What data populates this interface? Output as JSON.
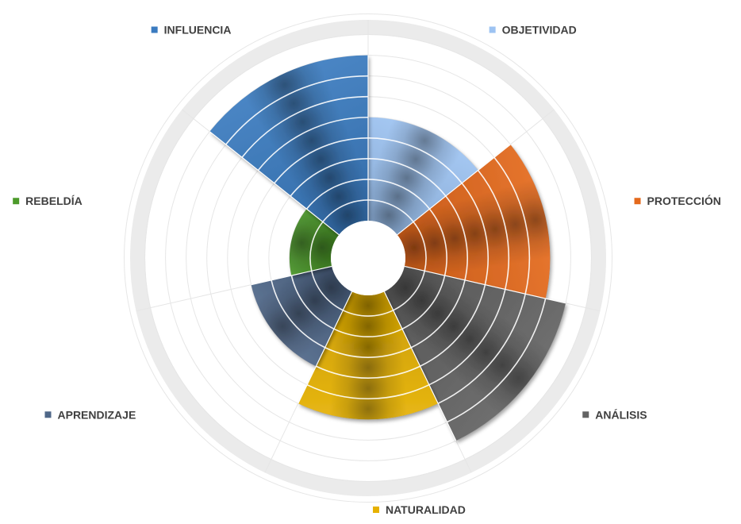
{
  "chart_data": {
    "type": "polar-area",
    "title": "",
    "r_max": 10,
    "ring_count": 10,
    "grid": true,
    "legend": "labels-around",
    "categories": [
      {
        "name": "OBJETIVIDAD",
        "value": 5,
        "color": "#9dc3f2"
      },
      {
        "name": "PROTECCIÓN",
        "value": 7,
        "color": "#e4691c"
      },
      {
        "name": "ANÁLISIS",
        "value": 8,
        "color": "#636363"
      },
      {
        "name": "NATURALIDAD",
        "value": 6,
        "color": "#e6b100"
      },
      {
        "name": "APRENDIZAJE",
        "value": 4,
        "color": "#4f6788"
      },
      {
        "name": "REBELDÍA",
        "value": 2,
        "color": "#4c9a2a"
      },
      {
        "name": "INFLUENCIA",
        "value": 8,
        "color": "#3a7bc0"
      }
    ]
  }
}
